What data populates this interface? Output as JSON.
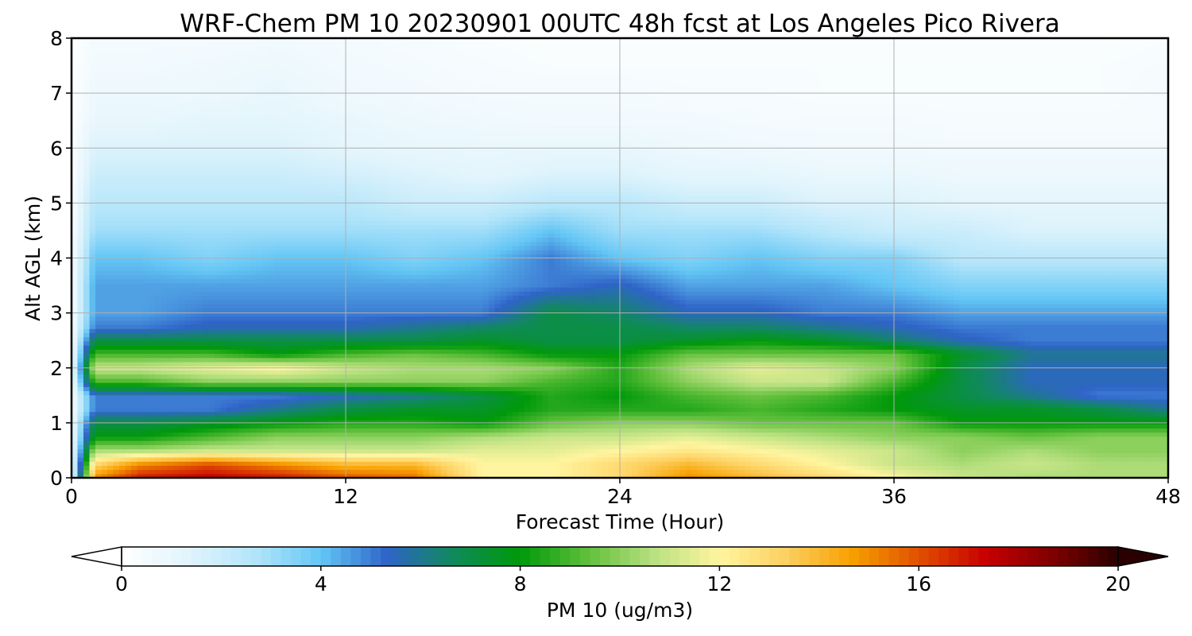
{
  "chart_data": {
    "type": "heatmap",
    "title": "WRF-Chem PM 10  20230901 00UTC 48h fcst at Los Angeles Pico Rivera",
    "xlabel": "Forecast Time (Hour)",
    "ylabel": "Alt AGL (km)",
    "xlim": [
      0,
      48
    ],
    "ylim": [
      0,
      8
    ],
    "x_ticks": [
      "0",
      "12",
      "24",
      "36",
      "48"
    ],
    "y_ticks": [
      "0",
      "1",
      "2",
      "3",
      "4",
      "5",
      "6",
      "7",
      "8"
    ],
    "grid": true,
    "colorbar": {
      "label": "PM 10  (ug/m3)",
      "range": [
        0,
        20
      ],
      "ticks": [
        "0",
        "4",
        "8",
        "12",
        "16",
        "20"
      ],
      "extend": "both",
      "colors": [
        "#ffffff",
        "#e1f4fc",
        "#b3e5fa",
        "#64c6f5",
        "#2f64c8",
        "#0f8a5a",
        "#00990a",
        "#5fbf3a",
        "#b8e080",
        "#fff5a0",
        "#fdd060",
        "#f7a000",
        "#e05000",
        "#c80000",
        "#800000",
        "#2a0000"
      ]
    },
    "time_hours": [
      0,
      1,
      3,
      6,
      9,
      12,
      15,
      18,
      21,
      24,
      27,
      30,
      33,
      36,
      39,
      42,
      45,
      48
    ],
    "altitude_km": [
      0,
      0.25,
      0.5,
      0.75,
      1.0,
      1.25,
      1.5,
      1.75,
      2.0,
      2.25,
      2.5,
      2.75,
      3.0,
      3.5,
      4.0,
      4.5,
      5.0,
      5.5,
      6.0,
      6.5,
      7.0,
      7.5,
      8.0
    ],
    "pm10_ugm3": [
      [
        0.5,
        15,
        17,
        17.5,
        17,
        16,
        15.5,
        12,
        12,
        13,
        15,
        14,
        13,
        12,
        11,
        10.5,
        10.5,
        10.5
      ],
      [
        0.5,
        13,
        15,
        16,
        15,
        14,
        14,
        12,
        12,
        13,
        14,
        13,
        12,
        11,
        10.5,
        11,
        10.5,
        10.5
      ],
      [
        0.5,
        10.5,
        10.5,
        11,
        11,
        11,
        11,
        11.5,
        11.5,
        12,
        12.5,
        12,
        11.5,
        11,
        10,
        10.5,
        10,
        10
      ],
      [
        0.5,
        8,
        8,
        9,
        10,
        10,
        10,
        10.5,
        11,
        11,
        11.5,
        11,
        10.5,
        10,
        10,
        9.5,
        10,
        10
      ],
      [
        0.5,
        7,
        7,
        7.5,
        8,
        8.5,
        8.5,
        8,
        9.5,
        10,
        10,
        9.5,
        9.5,
        9.5,
        8,
        8,
        8,
        8
      ],
      [
        0.4,
        5,
        5,
        5,
        6,
        7,
        7.5,
        7.5,
        8.5,
        8.5,
        8.5,
        9,
        8.5,
        8,
        7.5,
        7.5,
        7,
        6
      ],
      [
        0.4,
        5,
        5,
        5,
        5,
        5.5,
        6,
        7,
        8.5,
        8,
        9,
        9.5,
        9,
        8,
        7,
        6,
        5,
        5
      ],
      [
        0.4,
        9,
        9,
        10,
        10,
        10,
        10,
        10,
        9,
        8.5,
        10,
        11,
        11,
        9,
        7,
        5.5,
        5.5,
        5.5
      ],
      [
        0.4,
        11,
        11,
        11.5,
        12,
        11,
        10.5,
        10.5,
        10,
        8.5,
        10.5,
        11.5,
        11,
        10,
        7,
        5.5,
        5.5,
        5.5
      ],
      [
        0.3,
        9,
        9,
        9,
        8,
        9,
        9.5,
        9,
        8,
        8,
        9.5,
        9.5,
        9.5,
        9.5,
        7.5,
        6,
        6,
        6
      ],
      [
        0.3,
        7,
        7,
        7,
        7,
        7,
        7,
        7.5,
        7,
        7,
        7.5,
        8,
        7.5,
        6.5,
        5.5,
        5,
        5,
        5
      ],
      [
        0.3,
        5,
        5,
        5.5,
        5.5,
        5.5,
        6,
        6.5,
        7,
        7,
        6.5,
        6.5,
        6,
        5.5,
        5,
        5,
        5,
        5
      ],
      [
        0.3,
        4.5,
        4.5,
        5,
        5,
        5,
        5,
        5,
        7,
        6.5,
        5.5,
        5.5,
        5,
        5,
        4.5,
        4.5,
        4.5,
        4.5
      ],
      [
        0.3,
        4.5,
        4.5,
        4.5,
        4.5,
        4.5,
        4.5,
        4.5,
        5,
        5.5,
        4.5,
        4.5,
        4.5,
        4,
        3.5,
        3.5,
        3.5,
        3.5
      ],
      [
        0.3,
        4,
        4,
        3.5,
        4,
        4,
        3.5,
        4,
        5,
        4,
        3.5,
        4,
        3.5,
        3.5,
        2.5,
        2.5,
        2.5,
        2.5
      ],
      [
        0.3,
        3,
        3,
        3,
        3,
        3,
        3,
        3,
        4,
        3,
        3,
        3,
        2.5,
        2,
        2,
        1.5,
        1.5,
        1.5
      ],
      [
        0.3,
        2.5,
        2.5,
        2.5,
        2.5,
        2.5,
        2,
        2,
        2.5,
        2.5,
        2,
        2,
        1.5,
        1.5,
        1.2,
        1.2,
        1.2,
        1.2
      ],
      [
        0.2,
        2,
        2,
        2,
        2,
        1.8,
        1.5,
        1.2,
        1.5,
        1.5,
        1.2,
        1.2,
        1,
        1,
        0.8,
        0.8,
        0.8,
        0.8
      ],
      [
        0.2,
        1.5,
        1.5,
        1.5,
        1.5,
        1.2,
        1,
        1,
        1,
        1,
        0.8,
        0.7,
        0.6,
        0.6,
        0.6,
        0.6,
        0.6,
        0.6
      ],
      [
        0.2,
        1,
        1,
        1.2,
        1.2,
        1,
        0.8,
        0.7,
        0.6,
        0.6,
        0.6,
        0.5,
        0.5,
        0.5,
        0.4,
        0.4,
        0.4,
        0.4
      ],
      [
        0.1,
        0.8,
        0.8,
        0.8,
        1,
        0.7,
        0.6,
        0.5,
        0.5,
        0.5,
        0.4,
        0.4,
        0.3,
        0.3,
        0.3,
        0.3,
        0.3,
        0.5
      ],
      [
        0.1,
        0.6,
        0.6,
        0.7,
        0.8,
        0.6,
        0.5,
        0.4,
        0.3,
        0.3,
        0.3,
        0.3,
        0.3,
        0.3,
        0.3,
        0.3,
        0.3,
        0.4
      ],
      [
        0.1,
        0.5,
        0.5,
        0.5,
        0.6,
        0.5,
        0.4,
        0.3,
        0.2,
        0.2,
        0.2,
        0.2,
        0.2,
        0.2,
        0.2,
        0.2,
        0.2,
        0.3
      ]
    ]
  }
}
